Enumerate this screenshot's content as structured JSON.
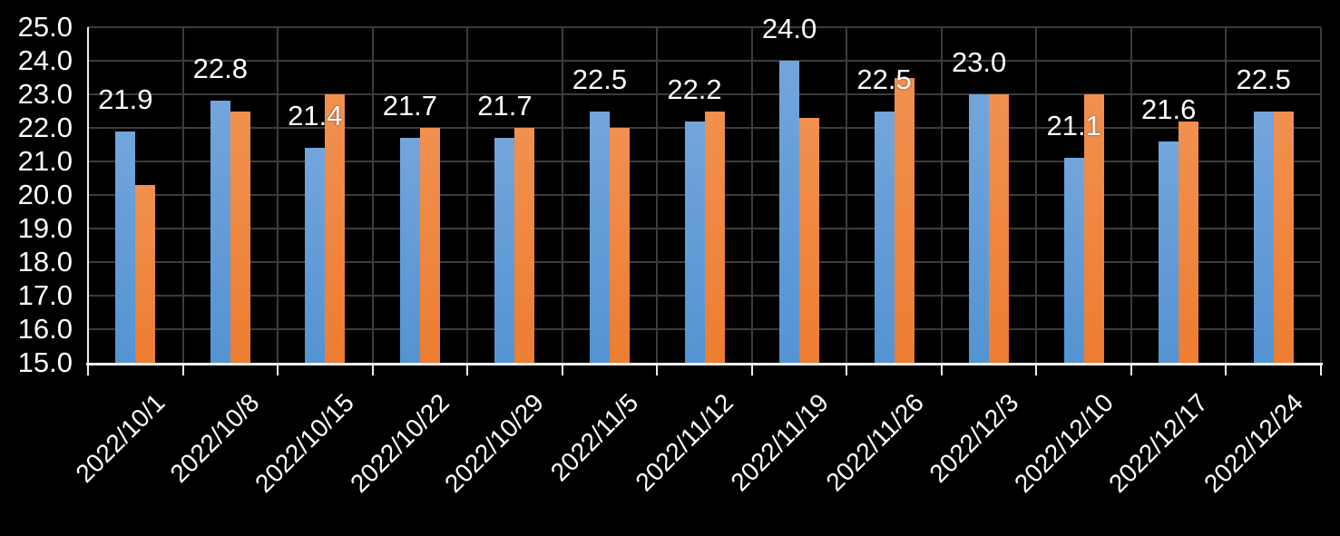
{
  "chart_data": {
    "type": "bar",
    "title": "",
    "legend": "none",
    "grid": true,
    "background_color": "#000000",
    "gridline_color": "#3c3c3c",
    "axis_color": "#efefef",
    "text_color": "#ffffff",
    "categories": [
      "2022/10/1",
      "2022/10/8",
      "2022/10/15",
      "2022/10/22",
      "2022/10/29",
      "2022/11/5",
      "2022/11/12",
      "2022/11/19",
      "2022/11/26",
      "2022/12/3",
      "2022/12/10",
      "2022/12/17",
      "2022/12/24"
    ],
    "series": [
      {
        "name": "blue-series",
        "color_top": "#73A5DC",
        "color_bottom": "#5493D2",
        "values": [
          21.9,
          22.8,
          21.4,
          21.7,
          21.7,
          22.5,
          22.2,
          24.0,
          22.5,
          23.0,
          21.1,
          21.6,
          22.5
        ],
        "data_labels": [
          "21.9",
          "22.8",
          "21.4",
          "21.7",
          "21.7",
          "22.5",
          "22.2",
          "24.0",
          "22.5",
          "23.0",
          "21.1",
          "21.6",
          "22.5"
        ]
      },
      {
        "name": "orange-series",
        "color_top": "#F1904F",
        "color_bottom": "#ED7D31",
        "values": [
          20.3,
          22.5,
          23.0,
          22.0,
          22.0,
          22.0,
          22.5,
          22.3,
          23.5,
          23.0,
          23.0,
          22.2,
          22.5
        ],
        "data_labels": null
      }
    ],
    "xlabel": "",
    "ylabel": "",
    "ylim": [
      15.0,
      25.0
    ],
    "ytick_step": 1.0,
    "ytick_labels": [
      "25.0",
      "24.0",
      "23.0",
      "22.0",
      "21.0",
      "20.0",
      "19.0",
      "18.0",
      "17.0",
      "16.0",
      "15.0"
    ]
  }
}
